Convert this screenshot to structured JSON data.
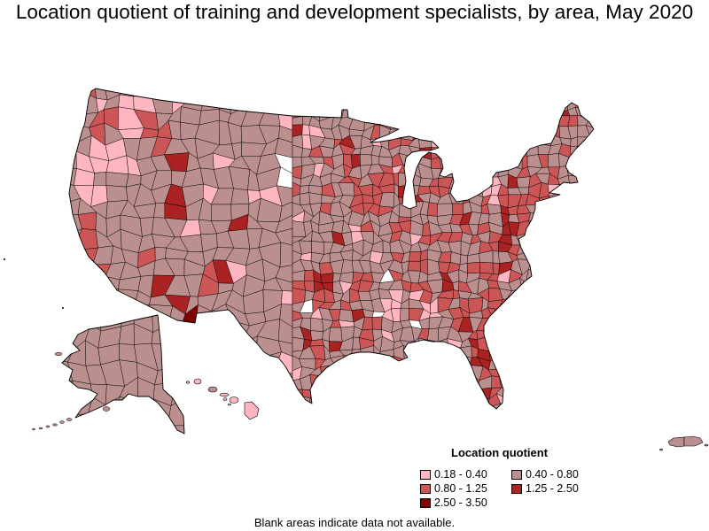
{
  "title": "Location quotient of training and development specialists, by area, May 2020",
  "legend": {
    "title": "Location quotient",
    "items": [
      {
        "label": "0.18 - 0.40",
        "color": "#FFB6C1"
      },
      {
        "label": "0.40 - 0.80",
        "color": "#BC8F8F"
      },
      {
        "label": "0.80 - 1.25",
        "color": "#CC5555"
      },
      {
        "label": "1.25 - 2.50",
        "color": "#AA2222"
      },
      {
        "label": "2.50 - 3.50",
        "color": "#800000"
      }
    ]
  },
  "blank_area_color": "#FFFFFF",
  "footnote": "Blank areas indicate data not available."
}
